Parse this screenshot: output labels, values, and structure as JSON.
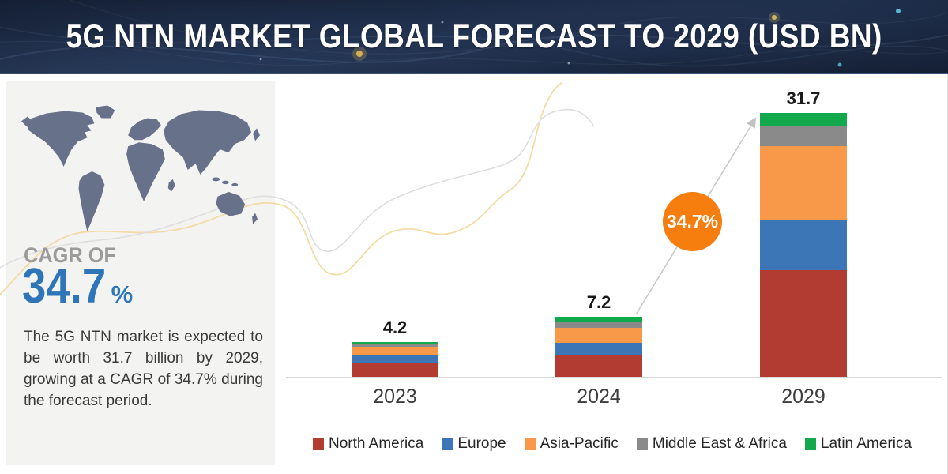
{
  "header": {
    "title": "5G NTN MARKET GLOBAL FORECAST TO 2029 (USD BN)"
  },
  "sidebar": {
    "cagr_label": "CAGR OF",
    "cagr_value": "34.7",
    "cagr_unit": "%",
    "description": "The 5G NTN market is expected to be worth 31.7 billion by 2029, growing at a CAGR of 34.7% during the forecast period."
  },
  "growth_callout": {
    "label": "34.7%",
    "color": "#f57e0f"
  },
  "chart_data": {
    "type": "bar",
    "stacked": true,
    "title": "5G NTN MARKET GLOBAL FORECAST TO 2029 (USD BN)",
    "categories": [
      "2023",
      "2024",
      "2029"
    ],
    "totals": [
      4.2,
      7.2,
      31.7
    ],
    "series": [
      {
        "name": "North America",
        "color": "#b23b32",
        "values": [
          1.7,
          2.6,
          12.8
        ]
      },
      {
        "name": "Europe",
        "color": "#3d76b7",
        "values": [
          0.9,
          1.5,
          6.1
        ]
      },
      {
        "name": "Asia-Pacific",
        "color": "#f8994a",
        "values": [
          1.0,
          1.8,
          8.8
        ]
      },
      {
        "name": "Middle East & Africa",
        "color": "#8a8a8a",
        "values": [
          0.3,
          0.7,
          2.5
        ]
      },
      {
        "name": "Latin America",
        "color": "#12a94c",
        "values": [
          0.3,
          0.6,
          1.5
        ]
      }
    ],
    "value_labels": [
      "4.2",
      "7.2",
      "31.7"
    ],
    "xlabel": "",
    "ylabel": "",
    "ylim": [
      0,
      31.7
    ],
    "grid": false,
    "legend_position": "bottom",
    "baseline_color": "#d9d9d9"
  },
  "colors": {
    "accent_blue": "#2f76b8",
    "header_navy": "#1c2a44",
    "sidebar_bg": "#f3f3f2",
    "map_fill": "#67718a",
    "curve_yellow": "#f2d9a0",
    "curve_gray": "#dedede",
    "arrow_gray": "#c9c9c9"
  }
}
